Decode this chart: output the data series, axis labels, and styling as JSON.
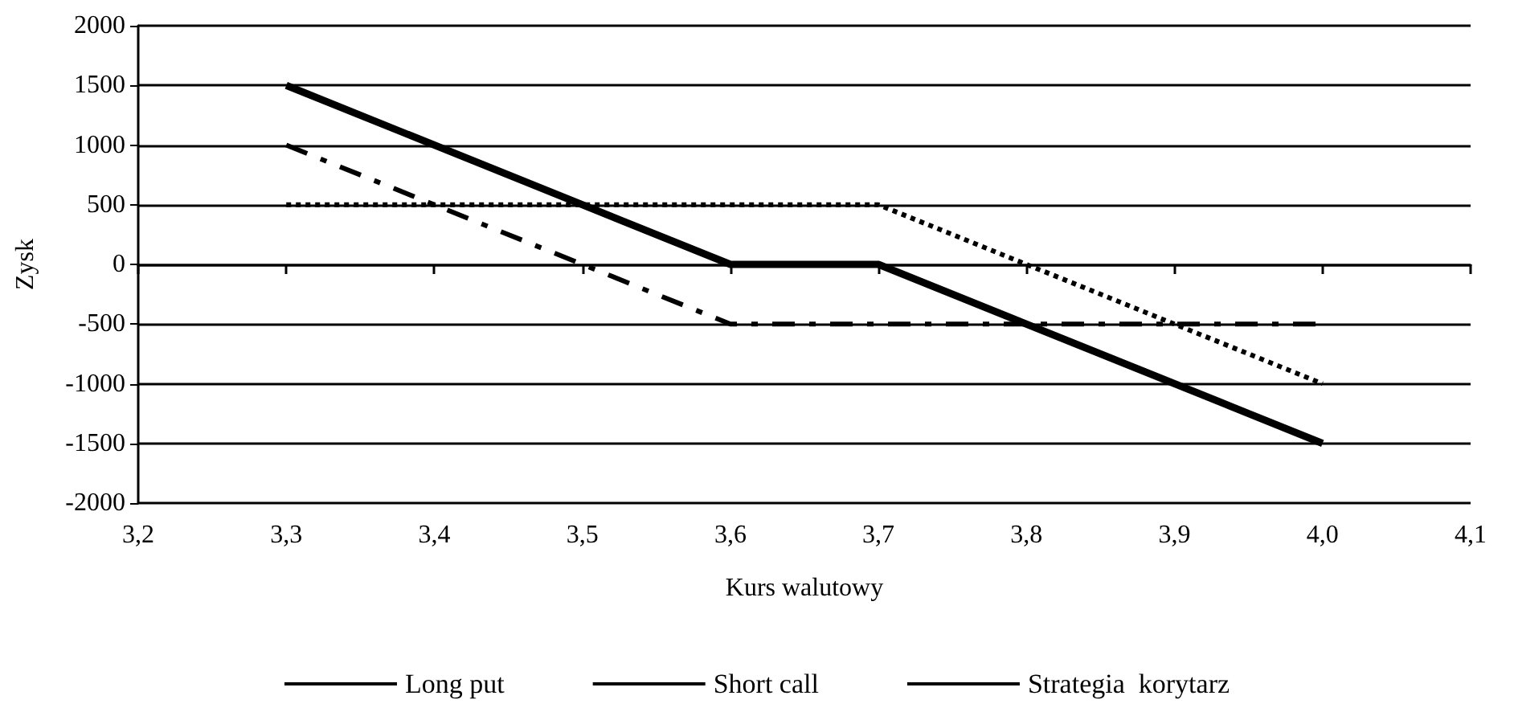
{
  "chart_data": {
    "type": "line",
    "xlabel": "Kurs walutowy",
    "ylabel": "Zysk",
    "xlim": [
      3.2,
      4.1
    ],
    "xticks": [
      {
        "value": 3.2,
        "label": "3,2"
      },
      {
        "value": 3.3,
        "label": "3,3"
      },
      {
        "value": 3.4,
        "label": "3,4"
      },
      {
        "value": 3.5,
        "label": "3,5"
      },
      {
        "value": 3.6,
        "label": "3,6"
      },
      {
        "value": 3.7,
        "label": "3,7"
      },
      {
        "value": 3.8,
        "label": "3,8"
      },
      {
        "value": 3.9,
        "label": "3,9"
      },
      {
        "value": 4.0,
        "label": "4,0"
      },
      {
        "value": 4.1,
        "label": "4,1"
      }
    ],
    "ylim": [
      -2000,
      2000
    ],
    "yticks": [
      -2000,
      -1500,
      -1000,
      -500,
      0,
      500,
      1000,
      1500,
      2000
    ],
    "grid": "y",
    "legend": "bottom",
    "marker": "none",
    "series": [
      {
        "name": "Long put",
        "color": "#000000",
        "line_style": "dotted",
        "x": [
          3.3,
          3.7,
          4.0
        ],
        "values": [
          500,
          500,
          -1000
        ]
      },
      {
        "name": "Short call",
        "color": "#000000",
        "line_style": "dashed",
        "x": [
          3.3,
          3.6,
          4.0
        ],
        "values": [
          1000,
          -500,
          -500
        ]
      },
      {
        "name": "Strategia  korytarz",
        "color": "#000000",
        "line_style": "solid",
        "x": [
          3.3,
          3.6,
          3.7,
          4.0
        ],
        "values": [
          1500,
          0,
          0,
          -1500
        ]
      }
    ]
  }
}
